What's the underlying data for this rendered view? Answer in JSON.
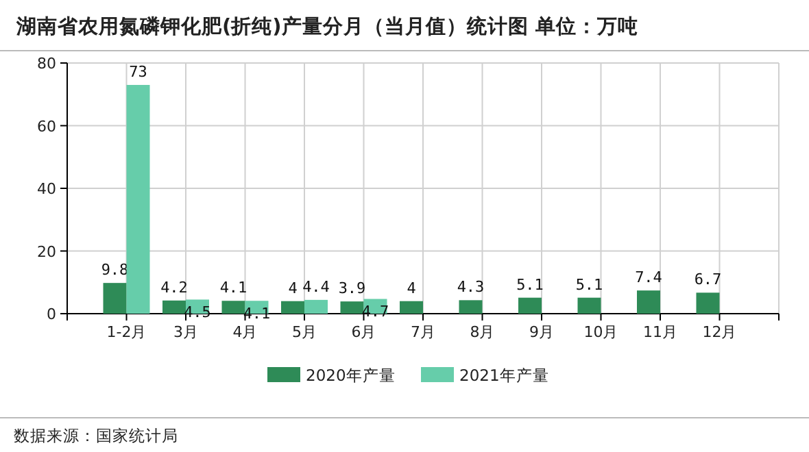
{
  "chart_data": {
    "type": "bar",
    "title": "湖南省农用氮磷钾化肥(折纯)产量分月（当月值）统计图 单位：万吨",
    "categories": [
      "1-2月",
      "3月",
      "4月",
      "5月",
      "6月",
      "7月",
      "8月",
      "9月",
      "10月",
      "11月",
      "12月"
    ],
    "series": [
      {
        "name": "2020年产量",
        "color": "#2e8b57",
        "values": [
          9.8,
          4.2,
          4.1,
          4,
          3.9,
          4,
          4.3,
          5.1,
          5.1,
          7.4,
          6.7
        ]
      },
      {
        "name": "2021年产量",
        "color": "#66cdaa",
        "values": [
          73,
          4.5,
          4.1,
          4.4,
          4.7,
          null,
          null,
          null,
          null,
          null,
          null
        ]
      }
    ],
    "ylim": [
      0,
      80
    ],
    "yticks": [
      0,
      20,
      40,
      60,
      80
    ],
    "grid": true,
    "legend": "bottom",
    "data_labels": true,
    "annotations": [
      "数据来源：国家统计局"
    ]
  }
}
